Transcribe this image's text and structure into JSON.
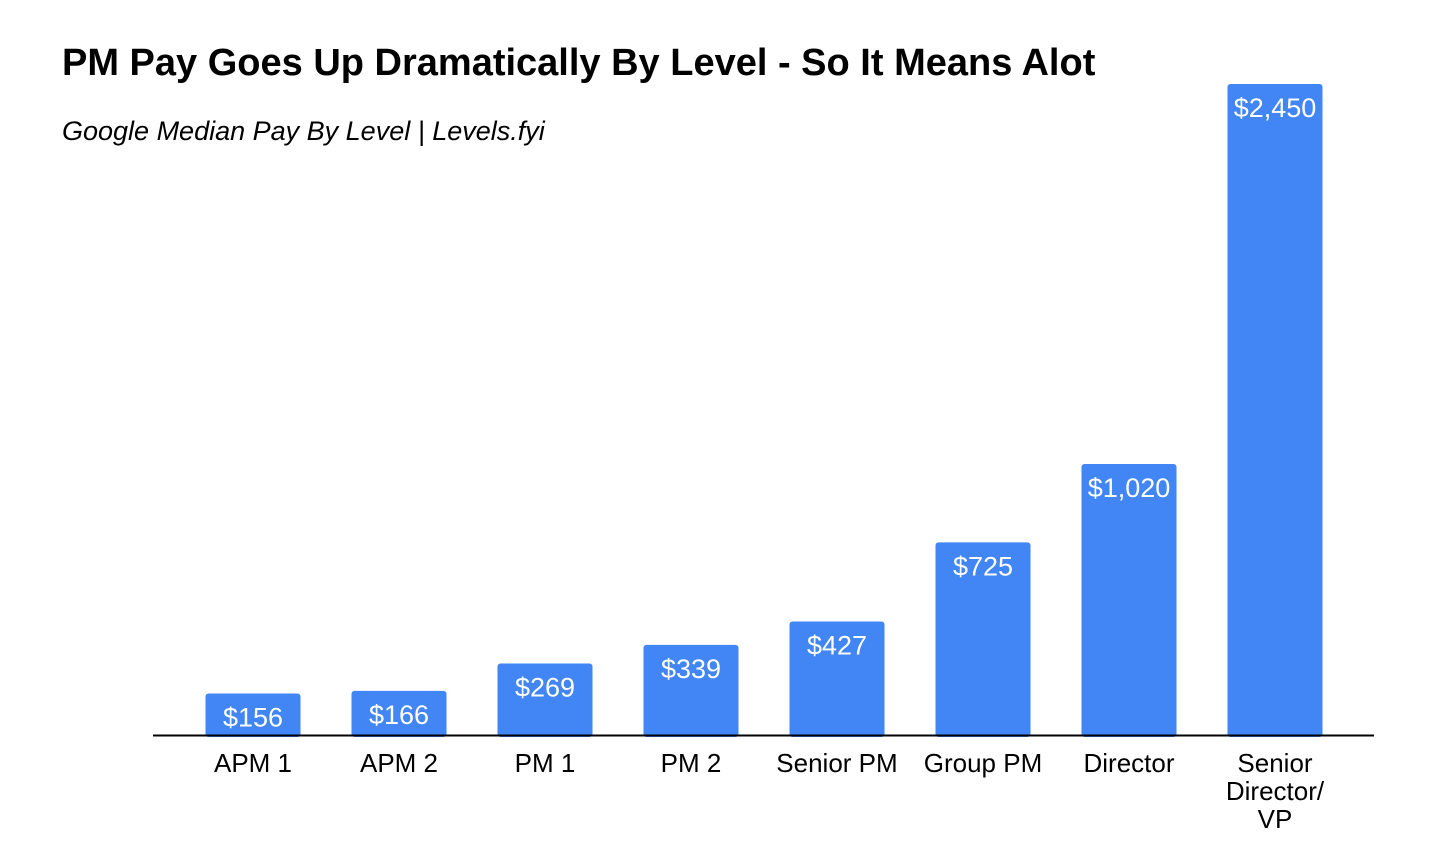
{
  "chart_data": {
    "type": "bar",
    "title": "PM Pay Goes Up Dramatically By Level - So It Means Alot",
    "subtitle": "Google Median Pay By Level | Levels.fyi",
    "categories": [
      [
        "APM 1"
      ],
      [
        "APM 2"
      ],
      [
        "PM 1"
      ],
      [
        "PM 2"
      ],
      [
        "Senior PM"
      ],
      [
        "Group PM"
      ],
      [
        "Director"
      ],
      [
        "Senior",
        "Director/",
        "VP"
      ]
    ],
    "values": [
      156,
      166,
      269,
      339,
      427,
      725,
      1020,
      2450
    ],
    "value_labels": [
      "$156",
      "$166",
      "$269",
      "$339",
      "$427",
      "$725",
      "$1,020",
      "$2,450"
    ],
    "ylim": [
      0,
      2450
    ],
    "grid": false,
    "legend": "none",
    "bar_color": "#4285f4",
    "axis_color": "#000000"
  }
}
